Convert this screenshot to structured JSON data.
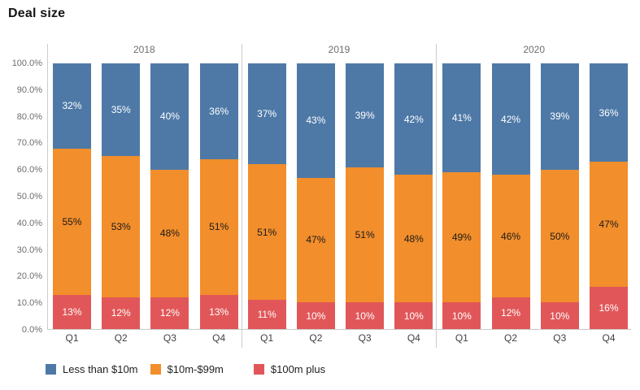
{
  "title": "Deal size",
  "colors": {
    "series_blue": "#4E79A7",
    "series_orange": "#F28E2B",
    "series_red": "#E15759",
    "axis_line": "#cccccc",
    "y_tick_label": "#6e6e6e",
    "year_label": "#6e6e6e",
    "quarter_label": "#3f3f3f",
    "legend_text": "#1f1f1f"
  },
  "legend": {
    "items": [
      {
        "label": "Less than $10m",
        "color": "#4E79A7"
      },
      {
        "label": "$10m-$99m",
        "color": "#F28E2B"
      },
      {
        "label": "$100m plus",
        "color": "#E15759"
      }
    ]
  },
  "chart_data": {
    "type": "bar",
    "variant": "100-percent-stacked-column",
    "title": "Deal size",
    "xlabel": "",
    "ylabel": "",
    "ylim": [
      0,
      100
    ],
    "grid": false,
    "legend_position": "bottom-left",
    "value_label_suffix": "%",
    "stack_order_bottom_to_top": [
      "$100m plus",
      "$10m-$99m",
      "Less than $10m"
    ],
    "y_ticks": [
      {
        "value": 100,
        "label": "100.0%"
      },
      {
        "value": 90,
        "label": "90.0%"
      },
      {
        "value": 80,
        "label": "80.0%"
      },
      {
        "value": 70,
        "label": "70.0%"
      },
      {
        "value": 60,
        "label": "60.0%"
      },
      {
        "value": 50,
        "label": "50.0%"
      },
      {
        "value": 40,
        "label": "40.0%"
      },
      {
        "value": 30,
        "label": "30.0%"
      },
      {
        "value": 20,
        "label": "20.0%"
      },
      {
        "value": 10,
        "label": "10.0%"
      },
      {
        "value": 0,
        "label": "0.0%"
      }
    ],
    "groups": [
      {
        "year": "2018",
        "categories": [
          "Q1",
          "Q2",
          "Q3",
          "Q4"
        ]
      },
      {
        "year": "2019",
        "categories": [
          "Q1",
          "Q2",
          "Q3",
          "Q4"
        ]
      },
      {
        "year": "2020",
        "categories": [
          "Q1",
          "Q2",
          "Q3",
          "Q4"
        ]
      }
    ],
    "series": [
      {
        "name": "Less than $10m",
        "color": "#4E79A7",
        "label_color": "#ffffff",
        "values": [
          32,
          35,
          40,
          36,
          37,
          43,
          39,
          42,
          41,
          42,
          39,
          36
        ]
      },
      {
        "name": "$10m-$99m",
        "color": "#F28E2B",
        "label_color": "#1a1a1a",
        "values": [
          55,
          53,
          48,
          51,
          51,
          47,
          51,
          48,
          49,
          46,
          50,
          47
        ]
      },
      {
        "name": "$100m plus",
        "color": "#E15759",
        "label_color": "#ffffff",
        "values": [
          13,
          12,
          12,
          13,
          11,
          10,
          10,
          10,
          10,
          12,
          10,
          16
        ]
      }
    ]
  }
}
